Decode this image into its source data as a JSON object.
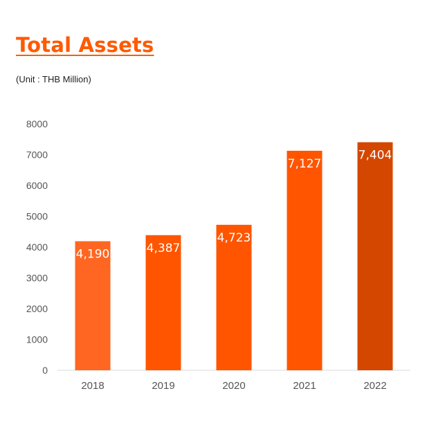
{
  "header": {
    "title": "Total Assets",
    "unit": "(Unit : THB Million)"
  },
  "chart_data": {
    "type": "bar",
    "categories": [
      "2018",
      "2019",
      "2020",
      "2021",
      "2022"
    ],
    "values": [
      4190,
      4387,
      4723,
      7127,
      7404
    ],
    "data_labels": [
      "4,190",
      "4,387",
      "4,723",
      "7,127",
      "7,404"
    ],
    "yticks": [
      "0",
      "1000",
      "2000",
      "3000",
      "4000",
      "5000",
      "6000",
      "7000",
      "8000"
    ],
    "ylim": [
      0,
      8000
    ],
    "grid": false,
    "legend": "none",
    "colors": [
      "#FF6622",
      "#FF5500",
      "#FF5500",
      "#FF5500",
      "#D44700"
    ]
  }
}
